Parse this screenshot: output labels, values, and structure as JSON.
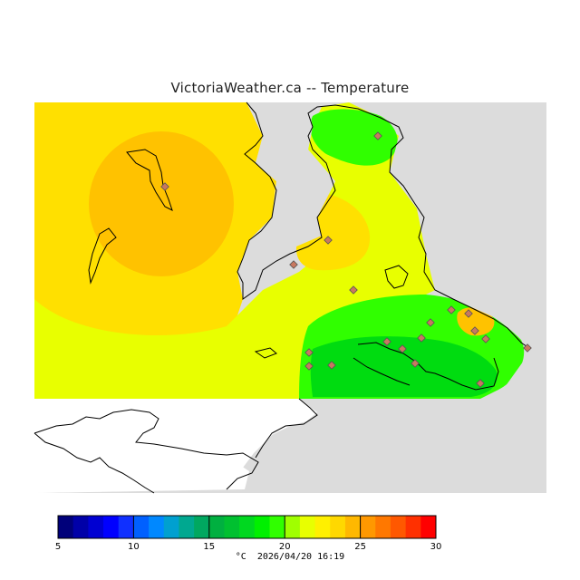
{
  "title": "VictoriaWeather.ca  --  Temperature",
  "legend": {
    "unit": "°C",
    "timestamp": "2026/04/20 16:19",
    "ticks": [
      "5",
      "10",
      "15",
      "20",
      "25",
      "30"
    ],
    "min": 5,
    "max": 30,
    "colors": [
      "#00007a",
      "#0000a8",
      "#0000d2",
      "#0000ff",
      "#1030ff",
      "#0060ff",
      "#0088ff",
      "#00a0d0",
      "#00a890",
      "#00a860",
      "#00b040",
      "#00c030",
      "#00d820",
      "#00f000",
      "#30ff00",
      "#a0ff00",
      "#e8ff00",
      "#fff000",
      "#ffd800",
      "#ffb800",
      "#ff9800",
      "#ff7800",
      "#ff5800",
      "#ff3000",
      "#ff0000"
    ]
  },
  "map_colors": {
    "land_outside": "#dcdcdc",
    "sea": "#ffffff",
    "coast": "#000000",
    "hot": "#ffc200",
    "warm": "#ffe000",
    "mild": "#e8ff00",
    "cool": "#30ff00",
    "cold": "#00dc10",
    "station": "#c07050"
  }
}
